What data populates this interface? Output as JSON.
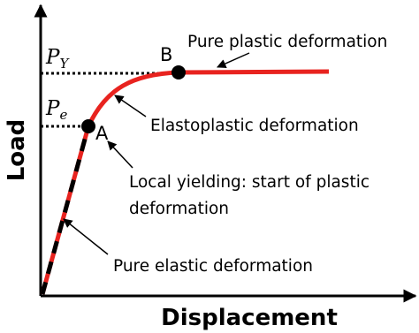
{
  "axes": {
    "y_label": "Load",
    "x_label": "Displacement"
  },
  "levels": [
    {
      "symbol": "P",
      "subscript": "Y"
    },
    {
      "symbol": "P",
      "subscript": "e"
    }
  ],
  "points": [
    {
      "label": "A"
    },
    {
      "label": "B"
    }
  ],
  "annotations": {
    "pure_plastic": "Pure plastic deformation",
    "elastoplastic": "Elastoplastic deformation",
    "local_yielding": [
      "Local yielding: start of plastic",
      "deformation"
    ],
    "pure_elastic": "Pure elastic deformation"
  }
}
